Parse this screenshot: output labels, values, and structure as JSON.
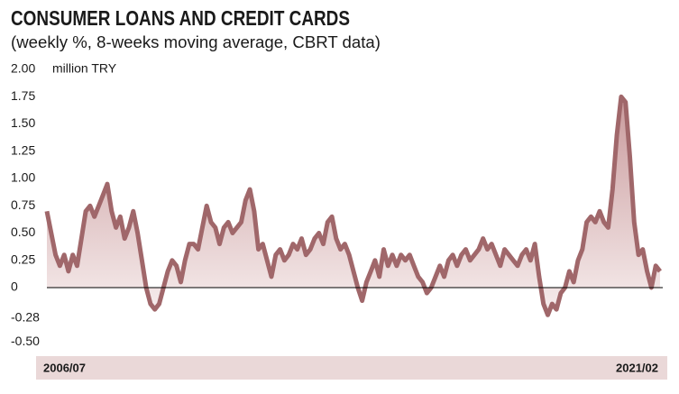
{
  "chart_data": {
    "type": "area",
    "title": "CONSUMER LOANS AND CREDIT CARDS",
    "subtitle": "(weekly %, 8-weeks moving average, CBRT data)",
    "y_axis_label": "million TRY",
    "categories": [
      "2006/07",
      null,
      null,
      null,
      null,
      null,
      null,
      null,
      null,
      null,
      null,
      null,
      null,
      null,
      null,
      null,
      null,
      null,
      null,
      null,
      null,
      null,
      null,
      null,
      null,
      null,
      null,
      null,
      null,
      null,
      null,
      null,
      null,
      null,
      null,
      null,
      null,
      null,
      null,
      null,
      null,
      null,
      null,
      null,
      null,
      null,
      null,
      null,
      null,
      null,
      null,
      null,
      null,
      null,
      null,
      null,
      null,
      null,
      null,
      null,
      null,
      null,
      null,
      null,
      null,
      null,
      null,
      null,
      null,
      null,
      null,
      null,
      null,
      null,
      null,
      null,
      null,
      null,
      null,
      null,
      null,
      null,
      null,
      null,
      null,
      null,
      null,
      null,
      null,
      null,
      null,
      null,
      null,
      null,
      null,
      null,
      null,
      null,
      null,
      null,
      null,
      null,
      null,
      null,
      null,
      null,
      null,
      null,
      null,
      null,
      null,
      null,
      null,
      null,
      null,
      null,
      null,
      null,
      null,
      null,
      null,
      null,
      null,
      null,
      null,
      null,
      null,
      null,
      null,
      null,
      null,
      null,
      null,
      null,
      null,
      null,
      null,
      null,
      null,
      null,
      null,
      null,
      "2021/02"
    ],
    "series": [
      {
        "name": "Consumer loans and credit cards",
        "color": "#a0676a",
        "values": [
          0.7,
          0.5,
          0.3,
          0.2,
          0.3,
          0.15,
          0.3,
          0.2,
          0.45,
          0.7,
          0.75,
          0.65,
          0.75,
          0.85,
          0.95,
          0.7,
          0.55,
          0.65,
          0.45,
          0.55,
          0.7,
          0.5,
          0.25,
          0,
          -0.15,
          -0.2,
          -0.15,
          0,
          0.15,
          0.25,
          0.2,
          0.05,
          0.25,
          0.4,
          0.4,
          0.35,
          0.55,
          0.75,
          0.6,
          0.55,
          0.4,
          0.55,
          0.6,
          0.5,
          0.55,
          0.6,
          0.8,
          0.9,
          0.7,
          0.35,
          0.4,
          0.25,
          0.1,
          0.3,
          0.35,
          0.25,
          0.3,
          0.4,
          0.35,
          0.45,
          0.3,
          0.35,
          0.45,
          0.5,
          0.4,
          0.6,
          0.65,
          0.45,
          0.35,
          0.4,
          0.3,
          0.15,
          0,
          -0.12,
          0.05,
          0.15,
          0.25,
          0.1,
          0.35,
          0.2,
          0.3,
          0.2,
          0.3,
          0.25,
          0.3,
          0.2,
          0.1,
          0.05,
          -0.05,
          0,
          0.1,
          0.2,
          0.1,
          0.25,
          0.3,
          0.2,
          0.3,
          0.35,
          0.25,
          0.3,
          0.35,
          0.45,
          0.35,
          0.4,
          0.3,
          0.2,
          0.35,
          0.3,
          0.25,
          0.2,
          0.3,
          0.35,
          0.25,
          0.4,
          0.1,
          -0.15,
          -0.25,
          -0.15,
          -0.2,
          -0.05,
          0,
          0.15,
          0.05,
          0.25,
          0.35,
          0.6,
          0.65,
          0.6,
          0.7,
          0.6,
          0.55,
          0.9,
          1.4,
          1.75,
          1.7,
          1.2,
          0.6,
          0.3,
          0.35,
          0.15,
          0,
          0.2,
          0.15
        ]
      }
    ],
    "ylim": [
      -0.6,
      2.05
    ],
    "yticks": [
      {
        "value": 2,
        "label": "2.00"
      },
      1.75,
      {
        "value": 1.5,
        "label": "1.50"
      },
      1.25,
      {
        "value": 1,
        "label": "1.00"
      },
      0.75,
      {
        "value": 0.5,
        "label": "0.50"
      },
      0.25,
      0,
      -0.28,
      {
        "value": -0.5,
        "label": "-0.50"
      }
    ],
    "grid": false
  }
}
